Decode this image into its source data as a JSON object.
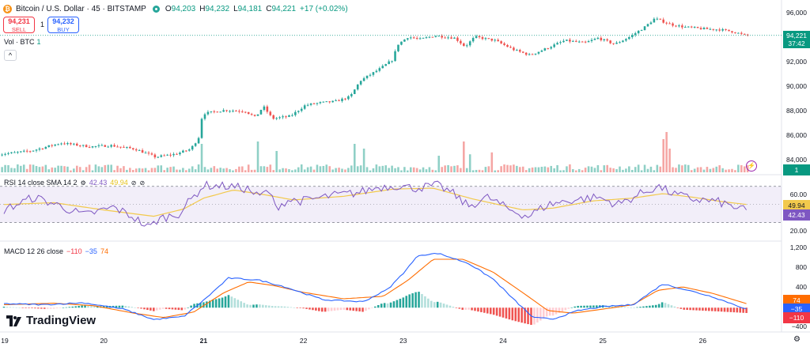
{
  "header": {
    "coin_glyph": "₿",
    "symbol_title": "Bitcoin / U.S. Dollar · 45 · BITSTAMP",
    "ohlc": [
      {
        "k": "O",
        "v": "94,203"
      },
      {
        "k": "H",
        "v": "94,232"
      },
      {
        "k": "L",
        "v": "94,181"
      },
      {
        "k": "C",
        "v": "94,221"
      },
      {
        "k": "",
        "v": "+17 (+0.02%)"
      }
    ],
    "sell_price": "94,231",
    "sell_label": "SELL",
    "spread": "1",
    "buy_price": "94,232",
    "buy_label": "BUY",
    "volume_label": "Vol · BTC",
    "volume_value": "1",
    "collapse_glyph": "^"
  },
  "rsi_legend": {
    "label": "RSI 14 close SMA 14 2",
    "rsi": "42.43",
    "sma": "49.94",
    "eye_icon": "⊘"
  },
  "macd_legend": {
    "label": "MACD 12 26 close",
    "hist": "−110",
    "macd": "−35",
    "signal": "74"
  },
  "price_axis": {
    "ticks": [
      "96,000",
      "94,000",
      "92,000",
      "90,000",
      "88,000",
      "86,000",
      "84,000"
    ]
  },
  "price_labels": {
    "last_price": "94,221",
    "countdown": "37:42",
    "volume": "1"
  },
  "rsi_axis": {
    "ticks": [
      "60.00",
      "40.00",
      "20.00"
    ],
    "sma_label": "49.94",
    "rsi_label": "42.43"
  },
  "macd_axis": {
    "ticks": [
      "1,200",
      "800",
      "400",
      "0",
      "−400"
    ],
    "signal_label": "74",
    "macd_label": "−35",
    "hist_label": "−110"
  },
  "x_axis": {
    "ticks": [
      "19",
      "20",
      "21",
      "22",
      "23",
      "24",
      "25",
      "26"
    ],
    "bold_ticks": [
      "21"
    ]
  },
  "branding": {
    "name": "TradingView"
  },
  "colors": {
    "up": "#26a69a",
    "down": "#ef5350",
    "vol_up": "#8fd0c6",
    "vol_down": "#f5a6a4",
    "rsi": "#7e57c2",
    "rsi_sma": "#f2c94c",
    "macd": "#2962ff",
    "signal": "#ff6d00",
    "hist_up": "#26a69a",
    "hist_up_light": "#b2dfdb",
    "hist_down": "#ef5350",
    "hist_down_light": "#ffcdd2"
  },
  "chart_data": {
    "type": "candlestick",
    "title": "Bitcoin / U.S. Dollar · 45 · BITSTAMP",
    "x_unit": "day index (19 = start of Nov 19)",
    "price_range": [
      83000,
      96600
    ],
    "price_anchors": [
      [
        18.95,
        84450
      ],
      [
        19.3,
        84750
      ],
      [
        19.6,
        85400
      ],
      [
        19.9,
        85100
      ],
      [
        20.1,
        85200
      ],
      [
        20.35,
        84900
      ],
      [
        20.55,
        84250
      ],
      [
        20.75,
        84500
      ],
      [
        20.9,
        84900
      ],
      [
        20.98,
        85800
      ],
      [
        21.02,
        87800
      ],
      [
        21.25,
        88100
      ],
      [
        21.45,
        88000
      ],
      [
        21.55,
        87500
      ],
      [
        21.63,
        88400
      ],
      [
        21.72,
        87400
      ],
      [
        21.9,
        87600
      ],
      [
        22.05,
        88500
      ],
      [
        22.2,
        88700
      ],
      [
        22.35,
        88800
      ],
      [
        22.5,
        89200
      ],
      [
        22.6,
        90500
      ],
      [
        22.8,
        91500
      ],
      [
        22.92,
        92200
      ],
      [
        22.98,
        93500
      ],
      [
        23.08,
        94100
      ],
      [
        23.2,
        93900
      ],
      [
        23.35,
        94200
      ],
      [
        23.55,
        94000
      ],
      [
        23.65,
        93300
      ],
      [
        23.75,
        94100
      ],
      [
        23.95,
        93800
      ],
      [
        24.15,
        93000
      ],
      [
        24.3,
        92600
      ],
      [
        24.45,
        93100
      ],
      [
        24.65,
        93800
      ],
      [
        24.85,
        93600
      ],
      [
        24.98,
        94000
      ],
      [
        25.15,
        93500
      ],
      [
        25.3,
        94100
      ],
      [
        25.45,
        94900
      ],
      [
        25.55,
        95600
      ],
      [
        25.72,
        95100
      ],
      [
        25.85,
        94900
      ],
      [
        26.05,
        94750
      ],
      [
        26.2,
        94700
      ],
      [
        26.35,
        94500
      ],
      [
        26.45,
        94221
      ]
    ],
    "volume_range": [
      0,
      1000
    ],
    "volume_spikes": [
      [
        20.98,
        600
      ],
      [
        21.55,
        650
      ],
      [
        21.72,
        450
      ],
      [
        22.52,
        600
      ],
      [
        22.6,
        500
      ],
      [
        23.35,
        350
      ],
      [
        23.6,
        650
      ],
      [
        23.68,
        380
      ],
      [
        23.88,
        420
      ],
      [
        25.6,
        700
      ],
      [
        25.65,
        850
      ],
      [
        25.68,
        500
      ],
      [
        26.38,
        150
      ]
    ],
    "rsi_range": [
      14,
      82
    ],
    "rsi_bands": [
      30,
      70
    ],
    "rsi_anchors": [
      [
        19.0,
        44
      ],
      [
        19.3,
        58
      ],
      [
        19.55,
        49
      ],
      [
        19.8,
        38
      ],
      [
        20.1,
        47
      ],
      [
        20.3,
        36
      ],
      [
        20.45,
        24
      ],
      [
        20.55,
        34
      ],
      [
        20.75,
        40
      ],
      [
        21.0,
        71
      ],
      [
        21.25,
        70
      ],
      [
        21.45,
        67
      ],
      [
        21.55,
        58
      ],
      [
        21.65,
        66
      ],
      [
        21.72,
        47
      ],
      [
        21.85,
        55
      ],
      [
        22.0,
        54
      ],
      [
        22.3,
        60
      ],
      [
        22.55,
        63
      ],
      [
        22.75,
        69
      ],
      [
        22.95,
        71
      ],
      [
        23.1,
        68
      ],
      [
        23.35,
        71
      ],
      [
        23.5,
        62
      ],
      [
        23.65,
        48
      ],
      [
        23.85,
        58
      ],
      [
        24.05,
        45
      ],
      [
        24.25,
        37
      ],
      [
        24.45,
        50
      ],
      [
        24.7,
        55
      ],
      [
        24.95,
        58
      ],
      [
        25.15,
        50
      ],
      [
        25.4,
        63
      ],
      [
        25.55,
        70
      ],
      [
        25.72,
        61
      ],
      [
        25.9,
        56
      ],
      [
        26.15,
        53
      ],
      [
        26.35,
        46
      ],
      [
        26.45,
        42.43
      ]
    ],
    "rsi_sma_anchors": [
      [
        19.0,
        50
      ],
      [
        19.5,
        52
      ],
      [
        20.0,
        44
      ],
      [
        20.5,
        37
      ],
      [
        20.8,
        45
      ],
      [
        21.0,
        57
      ],
      [
        21.3,
        66
      ],
      [
        21.6,
        61
      ],
      [
        21.9,
        55
      ],
      [
        22.4,
        59
      ],
      [
        22.9,
        67
      ],
      [
        23.3,
        68
      ],
      [
        23.7,
        56
      ],
      [
        24.2,
        44
      ],
      [
        24.5,
        46
      ],
      [
        24.9,
        54
      ],
      [
        25.3,
        57
      ],
      [
        25.6,
        62
      ],
      [
        25.9,
        58
      ],
      [
        26.2,
        53
      ],
      [
        26.45,
        49.94
      ]
    ],
    "macd_range": [
      -460,
      1300
    ],
    "macd_anchors": [
      [
        19.0,
        80
      ],
      [
        19.4,
        60
      ],
      [
        19.8,
        100
      ],
      [
        20.2,
        -30
      ],
      [
        20.5,
        -240
      ],
      [
        20.8,
        -180
      ],
      [
        21.0,
        150
      ],
      [
        21.25,
        600
      ],
      [
        21.55,
        560
      ],
      [
        21.8,
        430
      ],
      [
        22.2,
        160
      ],
      [
        22.6,
        120
      ],
      [
        22.85,
        380
      ],
      [
        23.0,
        700
      ],
      [
        23.15,
        1060
      ],
      [
        23.35,
        1100
      ],
      [
        23.65,
        900
      ],
      [
        23.9,
        580
      ],
      [
        24.1,
        180
      ],
      [
        24.3,
        -200
      ],
      [
        24.5,
        -230
      ],
      [
        24.75,
        -60
      ],
      [
        25.0,
        20
      ],
      [
        25.3,
        60
      ],
      [
        25.6,
        480
      ],
      [
        25.8,
        380
      ],
      [
        26.1,
        220
      ],
      [
        26.45,
        -35
      ]
    ],
    "signal_anchors": [
      [
        19.0,
        60
      ],
      [
        19.5,
        90
      ],
      [
        19.9,
        40
      ],
      [
        20.3,
        -110
      ],
      [
        20.6,
        -200
      ],
      [
        20.9,
        -90
      ],
      [
        21.2,
        300
      ],
      [
        21.45,
        520
      ],
      [
        21.7,
        450
      ],
      [
        22.0,
        310
      ],
      [
        22.4,
        180
      ],
      [
        22.8,
        230
      ],
      [
        23.05,
        560
      ],
      [
        23.3,
        980
      ],
      [
        23.6,
        980
      ],
      [
        23.9,
        720
      ],
      [
        24.2,
        300
      ],
      [
        24.45,
        -60
      ],
      [
        24.7,
        -110
      ],
      [
        25.0,
        -30
      ],
      [
        25.3,
        60
      ],
      [
        25.55,
        350
      ],
      [
        25.8,
        420
      ],
      [
        26.1,
        290
      ],
      [
        26.45,
        74
      ]
    ]
  }
}
